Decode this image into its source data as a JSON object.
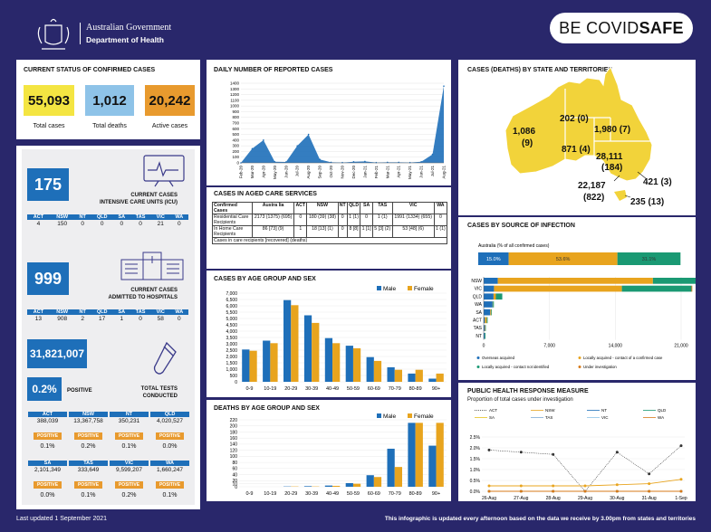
{
  "header": {
    "gov_title": "Australian Government",
    "dept": "Department of Health",
    "covidsafe_a": "BE COVID",
    "covidsafe_b": "SAFE"
  },
  "status": {
    "title": "CURRENT STATUS OF CONFIRMED CASES",
    "total_cases": "55,093",
    "total_cases_label": "Total cases",
    "total_deaths": "1,012",
    "total_deaths_label": "Total deaths",
    "active": "20,242",
    "active_label": "Active cases",
    "colors": {
      "cases": "#f4e542",
      "deaths": "#8ec3e8",
      "active": "#e89a2e"
    }
  },
  "icu": {
    "value": "175",
    "label1": "CURRENT CASES",
    "label2": "INTENSIVE CARE UNITS (ICU)",
    "states": [
      "ACT",
      "NSW",
      "NT",
      "QLD",
      "SA",
      "TAS",
      "VIC",
      "WA"
    ],
    "values": [
      "4",
      "150",
      "0",
      "0",
      "0",
      "0",
      "21",
      "0"
    ]
  },
  "hosp": {
    "value": "999",
    "label1": "CURRENT CASES",
    "label2": "ADMITTED TO HOSPITALS",
    "states": [
      "ACT",
      "NSW",
      "NT",
      "QLD",
      "SA",
      "TAS",
      "VIC",
      "WA"
    ],
    "values": [
      "13",
      "908",
      "2",
      "17",
      "1",
      "0",
      "58",
      "0"
    ]
  },
  "tests": {
    "value": "31,821,007",
    "positive_pct": "0.2%",
    "positive_label": "POSITIVE",
    "label1": "TOTAL TESTS",
    "label2": "CONDUCTED",
    "positive_word": "POSITIVE",
    "rows": [
      [
        {
          "state": "ACT",
          "tests": "388,039",
          "pct": "0.1%"
        },
        {
          "state": "NSW",
          "tests": "13,367,758",
          "pct": "0.2%"
        },
        {
          "state": "NT",
          "tests": "350,231",
          "pct": "0.1%"
        },
        {
          "state": "QLD",
          "tests": "4,020,527",
          "pct": "0.0%"
        }
      ],
      [
        {
          "state": "SA",
          "tests": "2,101,349",
          "pct": "0.0%"
        },
        {
          "state": "TAS",
          "tests": "333,649",
          "pct": "0.1%"
        },
        {
          "state": "VIC",
          "tests": "9,599,207",
          "pct": "0.2%"
        },
        {
          "state": "WA",
          "tests": "1,660,247",
          "pct": "0.1%"
        }
      ]
    ]
  },
  "daily": {
    "title": "DAILY NUMBER OF REPORTED CASES"
  },
  "aged": {
    "title": "CASES IN AGED CARE SERVICES",
    "headers": [
      "Confirmed Cases",
      "Austra lia",
      "ACT",
      "NSW",
      "NT",
      "QLD",
      "SA",
      "TAS",
      "VIC",
      "WA"
    ],
    "rows": [
      [
        "Residential Care Recipients",
        "2173 (1375) (695)",
        "0",
        "180 (39) (38)",
        "0",
        "1 (1)",
        "0",
        "1 (1)",
        "1991 (1334) (655)",
        "0"
      ],
      [
        "In Home Care Recipients",
        "86 [73] (9)",
        "1",
        "18 [13] (1)",
        "0",
        "8 [8]",
        "1 [1]",
        "5 [3] (2)",
        "53 [48] (6)",
        "1 (1)"
      ]
    ],
    "note": "Cases in care recipients [recovered] (deaths)"
  },
  "age_cases": {
    "title": "CASES BY AGE GROUP AND SEX"
  },
  "age_deaths": {
    "title": "DEATHS BY AGE GROUP AND SEX"
  },
  "map": {
    "title": "CASES (DEATHS) BY STATE AND TERRITORIES",
    "labels": {
      "wa": "1,086",
      "wa_d": "(9)",
      "nt": "202 (0)",
      "qld": "1,980 (7)",
      "sa": "871 (4)",
      "nsw": "28,111",
      "nsw_d": "(184)",
      "act": "421 (3)",
      "vic": "22,187",
      "vic_d": "(822)",
      "tas": "235 (13)"
    }
  },
  "source": {
    "title": "CASES BY SOURCE OF INFECTION",
    "sub": "Australia (% of all confirmed cases)",
    "legend": [
      "Overseas acquired",
      "Locally acquired - contact of a confirmed case",
      "Locally acquired - contact not identified",
      "Under investigation"
    ]
  },
  "phrm": {
    "title": "PUBLIC HEALTH RESPONSE MEASURE",
    "sub": "Proportion of total cases under investigation"
  },
  "footer": {
    "left": "Last updated 1 September 2021",
    "right": "This infographic is updated every afternoon based on the data we receive by 3.00pm from states and territories"
  },
  "chart_data": [
    {
      "type": "area",
      "title": "DAILY NUMBER OF REPORTED CASES",
      "x": [
        "Feb-20",
        "Mar-20",
        "Apr-20",
        "May-20",
        "Jun-20",
        "Jul-20",
        "Aug-20",
        "Sep-20",
        "Oct-20",
        "Nov-20",
        "Dec-20",
        "Jan-21",
        "Feb-21",
        "Mar-21",
        "Apr-21",
        "May-21",
        "Jun-21",
        "Jul-21",
        "Aug-21"
      ],
      "values": [
        0,
        250,
        400,
        20,
        15,
        300,
        500,
        60,
        10,
        5,
        20,
        25,
        5,
        10,
        10,
        5,
        20,
        150,
        1350
      ],
      "ylim": [
        0,
        1400
      ],
      "yticks": [
        0,
        100,
        200,
        300,
        400,
        500,
        600,
        700,
        800,
        900,
        1000,
        1100,
        1200,
        1300,
        1400
      ],
      "color": "#1e6fb9"
    },
    {
      "type": "bar",
      "title": "CASES BY AGE GROUP AND SEX",
      "categories": [
        "0-9",
        "10-19",
        "20-29",
        "30-39",
        "40-49",
        "50-59",
        "60-69",
        "70-79",
        "80-89",
        "90+"
      ],
      "series": [
        {
          "name": "Male",
          "values": [
            2550,
            3250,
            6450,
            5250,
            3450,
            2850,
            1950,
            1150,
            650,
            250
          ]
        },
        {
          "name": "Female",
          "values": [
            2450,
            3050,
            6050,
            4650,
            3050,
            2650,
            1650,
            950,
            950,
            650
          ]
        }
      ],
      "ylim": [
        0,
        7000
      ],
      "yticks": [
        0,
        500,
        1000,
        1500,
        2000,
        2500,
        3000,
        3500,
        4000,
        4500,
        5000,
        5500,
        6000,
        6500,
        7000
      ],
      "colors": [
        "#1e6fb9",
        "#e8a41e"
      ]
    },
    {
      "type": "bar",
      "title": "DEATHS BY AGE GROUP AND SEX",
      "categories": [
        "0-9",
        "10-19",
        "20-29",
        "30-39",
        "40-49",
        "50-59",
        "60-69",
        "70-79",
        "80-89",
        "90+"
      ],
      "series": [
        {
          "name": "Male",
          "values": [
            0,
            0,
            1,
            2,
            4,
            12,
            38,
            125,
            210,
            135
          ]
        },
        {
          "name": "Female",
          "values": [
            0,
            0,
            1,
            1,
            3,
            10,
            32,
            65,
            210,
            210
          ]
        }
      ],
      "ylim": [
        0,
        220
      ],
      "yticks": [
        0,
        10,
        20,
        40,
        60,
        80,
        100,
        120,
        140,
        160,
        180,
        200,
        220
      ],
      "colors": [
        "#1e6fb9",
        "#e8a41e"
      ]
    },
    {
      "type": "bar",
      "title": "CASES BY SOURCE OF INFECTION",
      "stacked_pct": [
        {
          "name": "Overseas acquired",
          "value": 15.0
        },
        {
          "name": "Locally acquired - contact of a confirmed case",
          "value": 53.6
        },
        {
          "name": "Locally acquired - contact not identified",
          "value": 31.1
        }
      ],
      "categories": [
        "NSW",
        "VIC",
        "QLD",
        "WA",
        "SA",
        "ACT",
        "TAS",
        "NT"
      ],
      "series": [
        {
          "name": "Overseas acquired",
          "values": [
            1500,
            1100,
            1050,
            950,
            700,
            130,
            140,
            110
          ]
        },
        {
          "name": "Locally acquired - contact of a confirmed case",
          "values": [
            16500,
            13600,
            250,
            40,
            100,
            200,
            60,
            10
          ]
        },
        {
          "name": "Locally acquired - contact not identified",
          "values": [
            10000,
            7400,
            680,
            96,
            71,
            91,
            35,
            82
          ]
        },
        {
          "name": "Under investigation",
          "values": [
            111,
            87,
            0,
            0,
            0,
            0,
            0,
            0
          ]
        }
      ],
      "xlim": [
        0,
        21000
      ],
      "xticks": [
        0,
        7000,
        14000,
        21000
      ],
      "colors": [
        "#1e6fb9",
        "#e8a41e",
        "#1a9973",
        "#d77a1a"
      ]
    },
    {
      "type": "line",
      "title": "PUBLIC HEALTH RESPONSE MEASURE",
      "x": [
        "26-Aug",
        "27-Aug",
        "28-Aug",
        "29-Aug",
        "30-Aug",
        "31-Aug",
        "1-Sep"
      ],
      "series": [
        {
          "name": "ACT",
          "values": [
            1.9,
            1.8,
            1.7,
            0.0,
            1.8,
            0.8,
            2.1
          ]
        },
        {
          "name": "NSW",
          "values": [
            0.25,
            0.25,
            0.25,
            0.25,
            0.3,
            0.35,
            0.55
          ]
        },
        {
          "name": "NT",
          "values": [
            0,
            0,
            0,
            0,
            0,
            0,
            0
          ]
        },
        {
          "name": "QLD",
          "values": [
            0,
            0,
            0,
            0,
            0,
            0,
            0
          ]
        },
        {
          "name": "SA",
          "values": [
            0,
            0,
            0,
            0,
            0,
            0,
            0
          ]
        },
        {
          "name": "TAS",
          "values": [
            0,
            0,
            0,
            0,
            0,
            0,
            0
          ]
        },
        {
          "name": "VIC",
          "values": [
            0,
            0,
            0,
            0,
            0,
            0,
            0
          ]
        },
        {
          "name": "WA",
          "values": [
            0,
            0,
            0,
            0,
            0,
            0,
            0
          ]
        }
      ],
      "ylim": [
        0,
        2.5
      ],
      "yticks": [
        "0.0%",
        "0.5%",
        "1.0%",
        "1.5%",
        "2.0%",
        "2.5%"
      ]
    }
  ]
}
